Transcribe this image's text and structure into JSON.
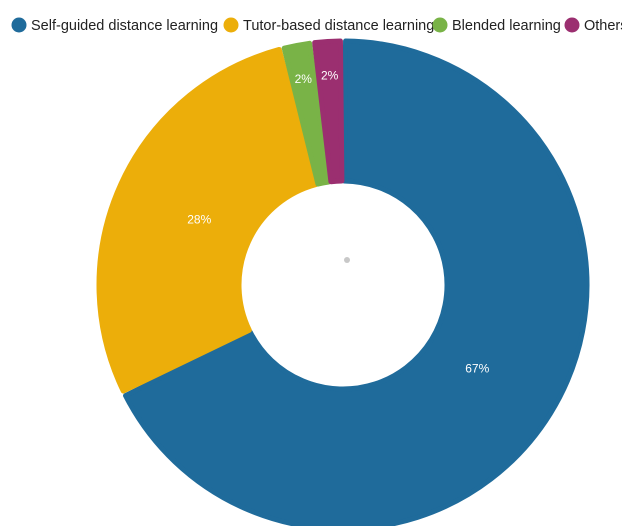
{
  "chart_data": {
    "type": "pie",
    "subtype": "donut",
    "categories": [
      "Self-guided distance learning",
      "Tutor-based distance learning",
      "Blended learning",
      "Others"
    ],
    "values": [
      67,
      28,
      2,
      2
    ],
    "data_labels": [
      "67%",
      "28%",
      "2%",
      "2%"
    ],
    "colors": [
      "#1f6b9b",
      "#ecae0a",
      "#79b347",
      "#9b2f70"
    ],
    "legend_position": "top"
  }
}
